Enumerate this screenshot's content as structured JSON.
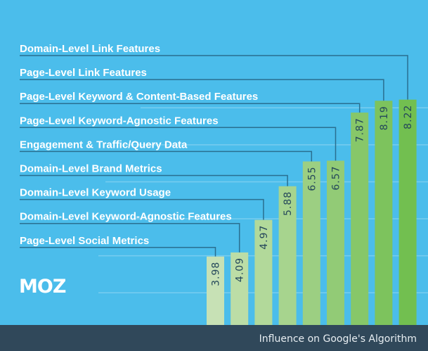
{
  "chart_data": {
    "type": "bar",
    "orientation": "vertical",
    "categories": [
      "Page-Level Social Metrics",
      "Domain-Level Keyword-Agnostic Features",
      "Domain-Level Keyword Usage",
      "Domain-Level Brand Metrics",
      "Engagement & Traffic/Query Data",
      "Page-Level Keyword-Agnostic Features",
      "Page-Level Keyword & Content-Based Features",
      "Page-Level Link Features",
      "Domain-Level Link Features"
    ],
    "values": [
      3.98,
      4.09,
      4.97,
      5.88,
      6.55,
      6.57,
      7.87,
      8.19,
      8.22
    ],
    "value_labels": [
      "3.98",
      "4.09",
      "4.97",
      "5.88",
      "6.55",
      "6.57",
      "7.87",
      "8.19",
      "8.22"
    ],
    "xlabel": "Influence on Google's Algorithm",
    "ylim": [
      2.13,
      9
    ],
    "grid": true,
    "gridlines": [
      3,
      4,
      5,
      6,
      7,
      8
    ],
    "bar_colors": [
      "#c7e1b5",
      "#bcdda6",
      "#b2d99a",
      "#a7d48e",
      "#9ccf82",
      "#92cb76",
      "#87c769",
      "#7dc35d",
      "#72bf50"
    ]
  },
  "colors": {
    "background": "#4bbdeb",
    "footer": "#30485a",
    "connector": "#2a6f90",
    "label_text": "#ffffff",
    "value_text": "#24475a"
  },
  "logo": {
    "text": "MOZ"
  },
  "footer": {
    "caption": "Influence on Google's Algorithm"
  }
}
